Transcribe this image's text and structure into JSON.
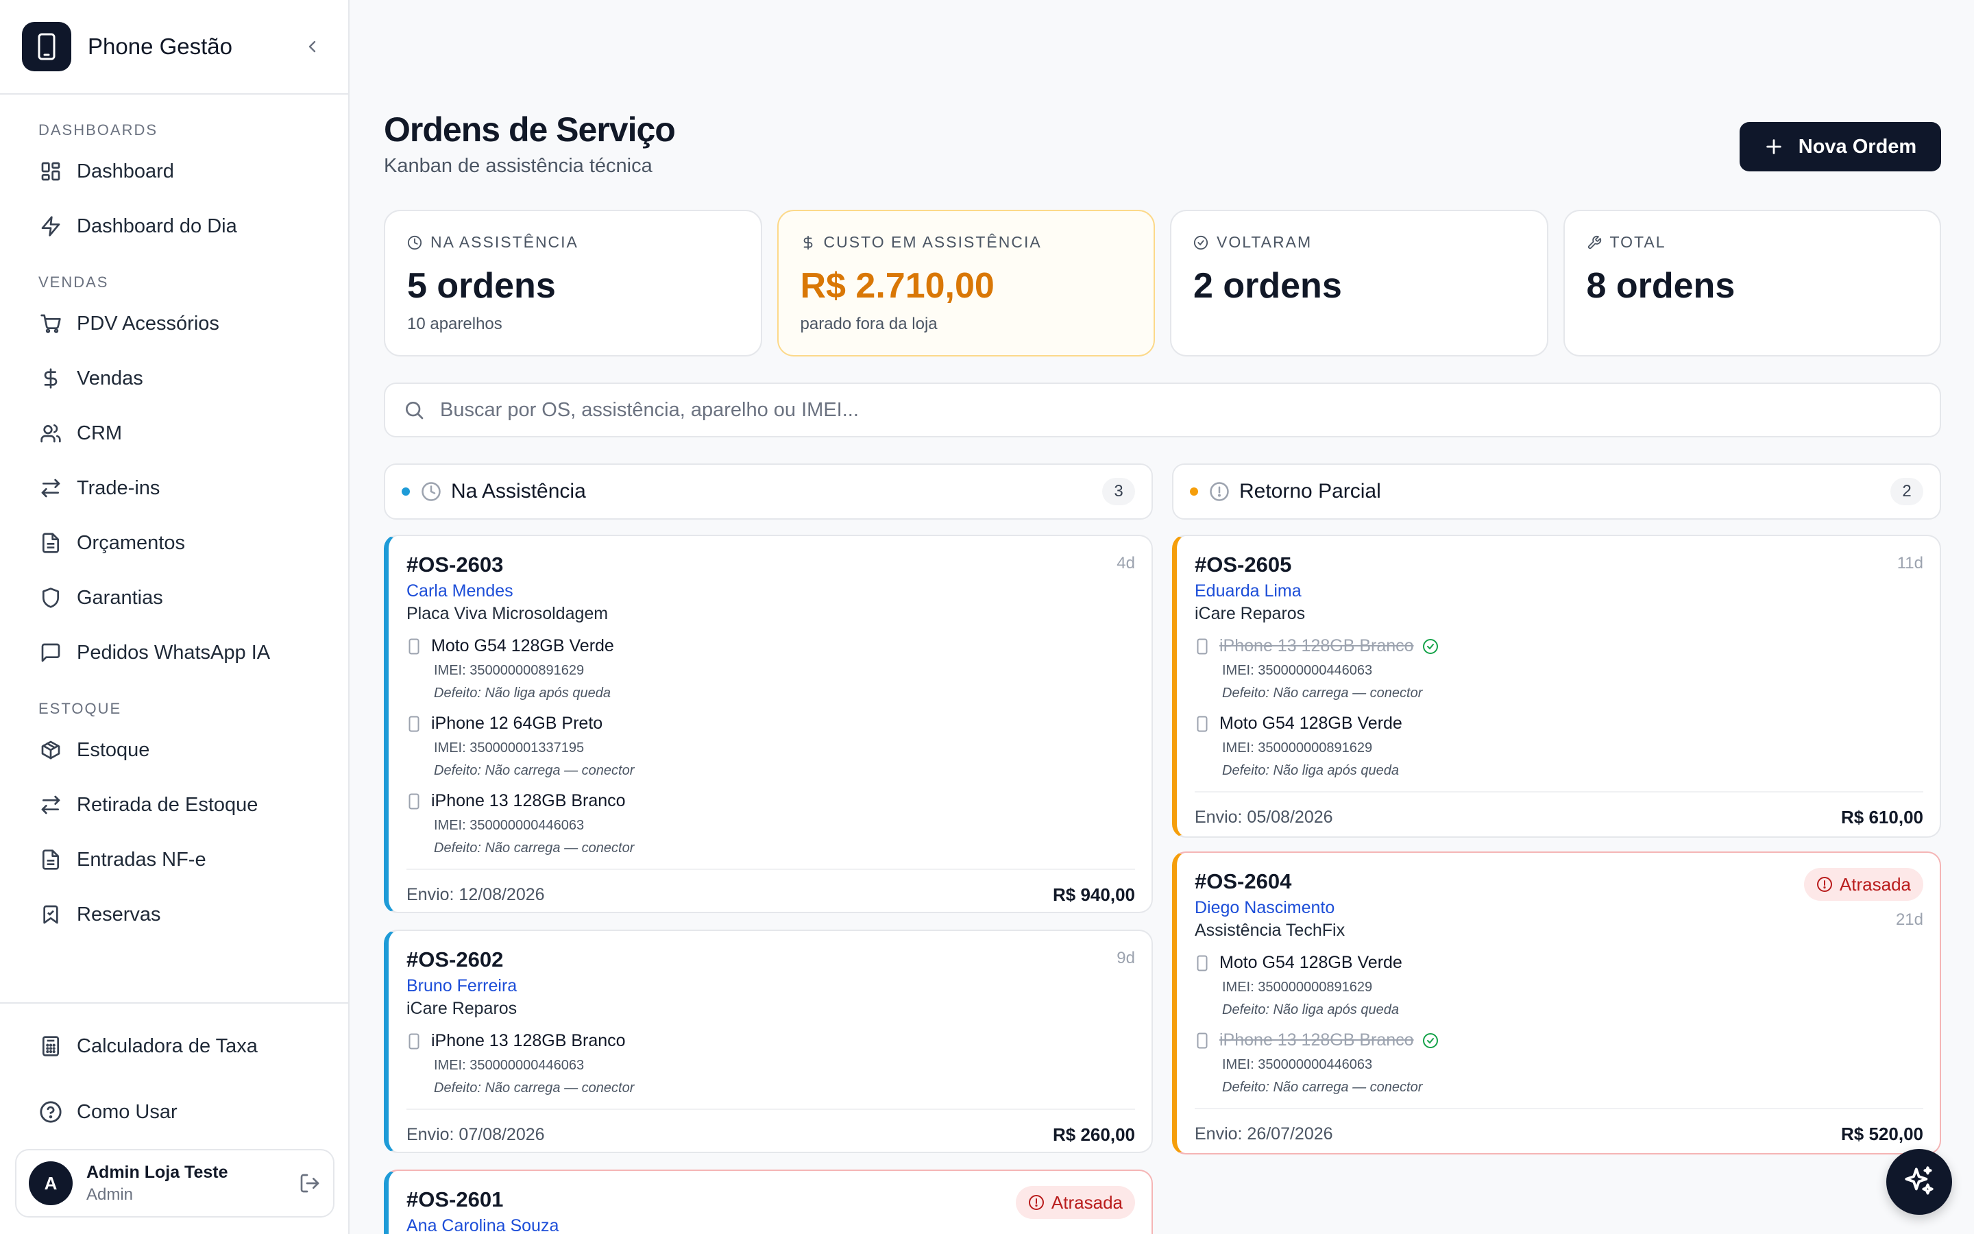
{
  "app": {
    "name": "Phone Gestão"
  },
  "sidebar": {
    "sections": [
      {
        "title": "DASHBOARDS",
        "items": [
          {
            "label": "Dashboard",
            "icon": "dashboard-grid-icon"
          },
          {
            "label": "Dashboard do Dia",
            "icon": "zap-icon"
          }
        ]
      },
      {
        "title": "VENDAS",
        "items": [
          {
            "label": "PDV Acessórios",
            "icon": "cart-icon"
          },
          {
            "label": "Vendas",
            "icon": "dollar-icon"
          },
          {
            "label": "CRM",
            "icon": "users-icon"
          },
          {
            "label": "Trade-ins",
            "icon": "arrows-swap-icon"
          },
          {
            "label": "Orçamentos",
            "icon": "document-icon"
          },
          {
            "label": "Garantias",
            "icon": "shield-icon"
          },
          {
            "label": "Pedidos WhatsApp IA",
            "icon": "message-icon"
          }
        ]
      },
      {
        "title": "ESTOQUE",
        "items": [
          {
            "label": "Estoque",
            "icon": "box-icon"
          },
          {
            "label": "Retirada de Estoque",
            "icon": "arrows-swap-icon"
          },
          {
            "label": "Entradas NF-e",
            "icon": "document-icon"
          },
          {
            "label": "Reservas",
            "icon": "bookmark-icon"
          }
        ]
      }
    ],
    "bottom": [
      {
        "label": "Calculadora de Taxa",
        "icon": "calculator-icon"
      },
      {
        "label": "Como Usar",
        "icon": "help-circle-icon"
      }
    ],
    "user": {
      "initial": "A",
      "name": "Admin Loja Teste",
      "role": "Admin"
    }
  },
  "header": {
    "title": "Ordens de Serviço",
    "subtitle": "Kanban de assistência técnica",
    "new_button": "Nova Ordem"
  },
  "stats": [
    {
      "label": "NA ASSISTÊNCIA",
      "value": "5 ordens",
      "sub": "10 aparelhos",
      "icon": "clock-icon"
    },
    {
      "label": "CUSTO EM ASSISTÊNCIA",
      "value": "R$ 2.710,00",
      "sub": "parado fora da loja",
      "icon": "dollar-icon",
      "accent": "#d97706"
    },
    {
      "label": "VOLTARAM",
      "value": "2 ordens",
      "sub": "",
      "icon": "check-circle-icon"
    },
    {
      "label": "TOTAL",
      "value": "8 ordens",
      "sub": "",
      "icon": "wrench-icon"
    }
  ],
  "search": {
    "placeholder": "Buscar por OS, assistência, aparelho ou IMEI..."
  },
  "columns": [
    {
      "title": "Na Assistência",
      "count": "3",
      "dot_color": "#1e9bd7",
      "cards": [
        {
          "id": "#OS-2603",
          "age": "4d",
          "client": "Carla Mendes",
          "shop": "Placa Viva Microsoldagem",
          "devices": [
            {
              "name": "Moto G54 128GB Verde",
              "imei": "IMEI: 350000000891629",
              "defect": "Defeito: Não liga após queda",
              "returned": false
            },
            {
              "name": "iPhone 12 64GB Preto",
              "imei": "IMEI: 350000001337195",
              "defect": "Defeito: Não carrega — conector",
              "returned": false
            },
            {
              "name": "iPhone 13 128GB Branco",
              "imei": "IMEI: 350000000446063",
              "defect": "Defeito: Não carrega — conector",
              "returned": false
            }
          ],
          "envio": "Envio: 12/08/2026",
          "price": "R$ 940,00"
        },
        {
          "id": "#OS-2602",
          "age": "9d",
          "client": "Bruno Ferreira",
          "shop": "iCare Reparos",
          "devices": [
            {
              "name": "iPhone 13 128GB Branco",
              "imei": "IMEI: 350000000446063",
              "defect": "Defeito: Não carrega — conector",
              "returned": false
            }
          ],
          "envio": "Envio: 07/08/2026",
          "price": "R$ 260,00"
        },
        {
          "id": "#OS-2601",
          "late_label": "Atrasada",
          "client": "Ana Carolina Souza"
        }
      ]
    },
    {
      "title": "Retorno Parcial",
      "count": "2",
      "dot_color": "#f59e0b",
      "cards": [
        {
          "id": "#OS-2605",
          "age": "11d",
          "client": "Eduarda Lima",
          "shop": "iCare Reparos",
          "devices": [
            {
              "name": "iPhone 13 128GB Branco",
              "imei": "IMEI: 350000000446063",
              "defect": "Defeito: Não carrega — conector",
              "returned": true
            },
            {
              "name": "Moto G54 128GB Verde",
              "imei": "IMEI: 350000000891629",
              "defect": "Defeito: Não liga após queda",
              "returned": false
            }
          ],
          "envio": "Envio: 05/08/2026",
          "price": "R$ 610,00"
        },
        {
          "id": "#OS-2604",
          "age": "21d",
          "late_label": "Atrasada",
          "client": "Diego Nascimento",
          "shop": "Assistência TechFix",
          "devices": [
            {
              "name": "Moto G54 128GB Verde",
              "imei": "IMEI: 350000000891629",
              "defect": "Defeito: Não liga após queda",
              "returned": false
            },
            {
              "name": "iPhone 13 128GB Branco",
              "imei": "IMEI: 350000000446063",
              "defect": "Defeito: Não carrega — conector",
              "returned": true
            }
          ],
          "envio": "Envio: 26/07/2026",
          "price": "R$ 520,00"
        }
      ]
    }
  ],
  "fab": {
    "icon": "sparkles-icon"
  }
}
